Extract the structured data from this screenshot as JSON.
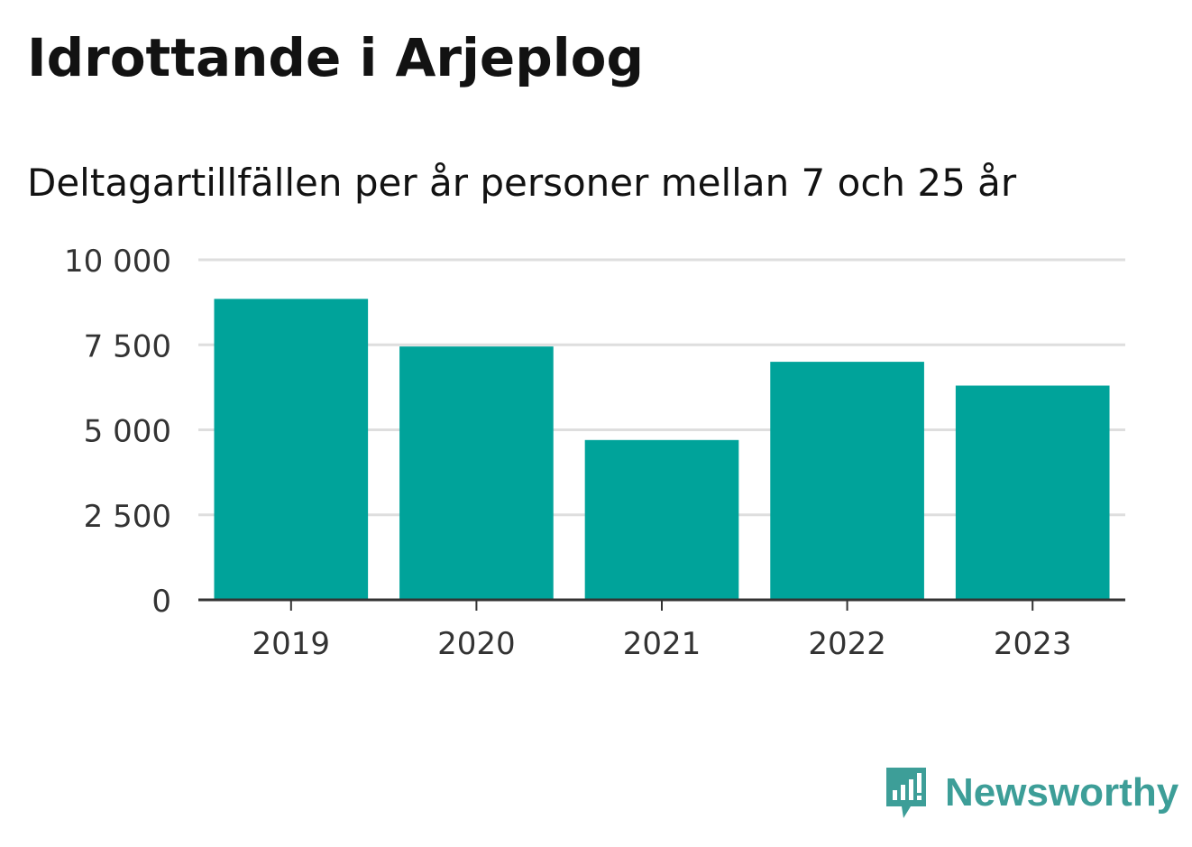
{
  "header": {
    "title": "Idrottande i Arjeplog",
    "subtitle": "Deltagartillfällen per år personer mellan 7 och 25 år"
  },
  "logo": {
    "text": "Newsworthy",
    "icon": "newsworthy-chart-bubble-icon",
    "color": "#3d9e98"
  },
  "chart_data": {
    "type": "bar",
    "title": "Idrottande i Arjeplog",
    "subtitle": "Deltagartillfällen per år personer mellan 7 och 25 år",
    "categories": [
      "2019",
      "2020",
      "2021",
      "2022",
      "2023"
    ],
    "values": [
      8850,
      7450,
      4700,
      7000,
      6300
    ],
    "xlabel": "",
    "ylabel": "",
    "ylim": [
      0,
      10000
    ],
    "yticks": [
      0,
      2500,
      5000,
      7500,
      10000
    ],
    "ytick_labels": [
      "0",
      "2 500",
      "5 000",
      "7 500",
      "10 000"
    ],
    "grid": true,
    "legend": "none",
    "bar_color": "#00a39a",
    "grid_color": "#dedede",
    "axis_color": "#333333"
  }
}
